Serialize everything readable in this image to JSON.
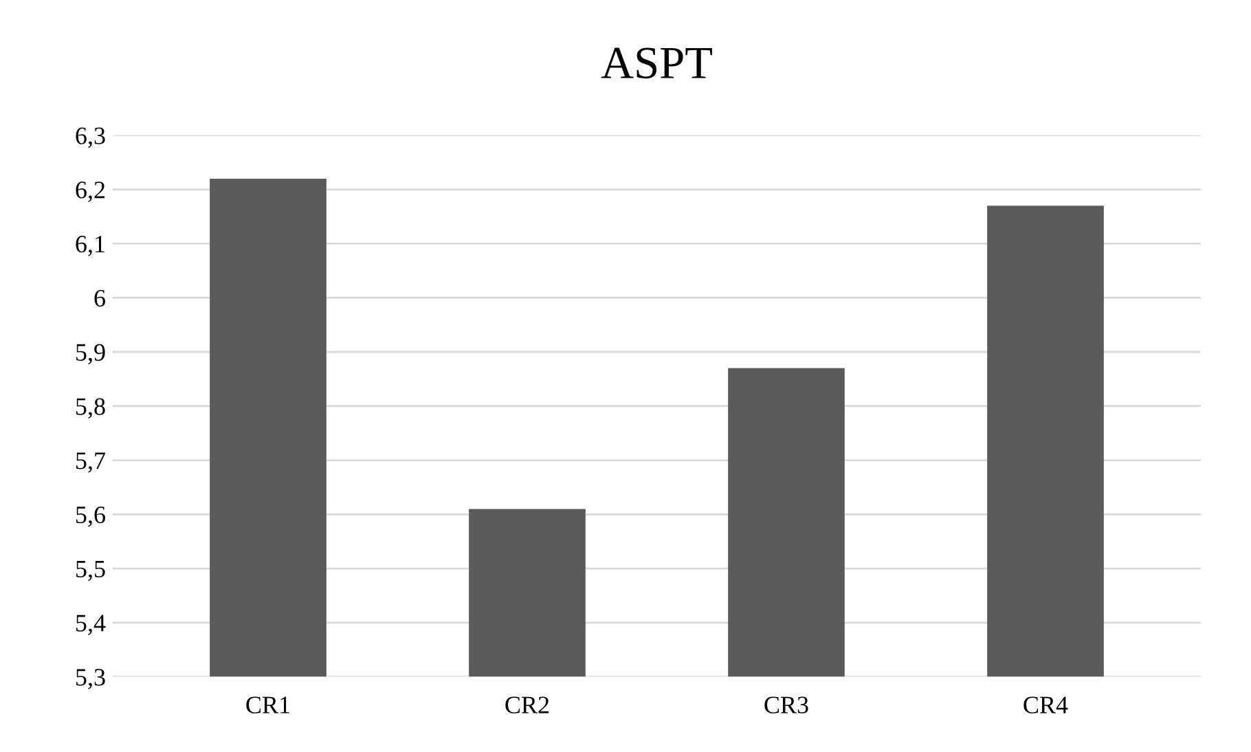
{
  "chart_data": {
    "type": "bar",
    "title": "ASPT",
    "categories": [
      "CR1",
      "CR2",
      "CR3",
      "CR4"
    ],
    "values": [
      6.22,
      5.61,
      5.87,
      6.17
    ],
    "color": "#5a5a5a",
    "ylim": [
      5.3,
      6.3
    ],
    "yticks": [
      {
        "value": 5.3,
        "label": "5,3"
      },
      {
        "value": 5.4,
        "label": "5,4"
      },
      {
        "value": 5.5,
        "label": "5,5"
      },
      {
        "value": 5.6,
        "label": "5,6"
      },
      {
        "value": 5.7,
        "label": "5,7"
      },
      {
        "value": 5.8,
        "label": "5,8"
      },
      {
        "value": 5.9,
        "label": "5,9"
      },
      {
        "value": 6.0,
        "label": "6"
      },
      {
        "value": 6.1,
        "label": "6,1"
      },
      {
        "value": 6.2,
        "label": "6,2"
      },
      {
        "value": 6.3,
        "label": "6,3"
      }
    ],
    "grid": "y"
  }
}
